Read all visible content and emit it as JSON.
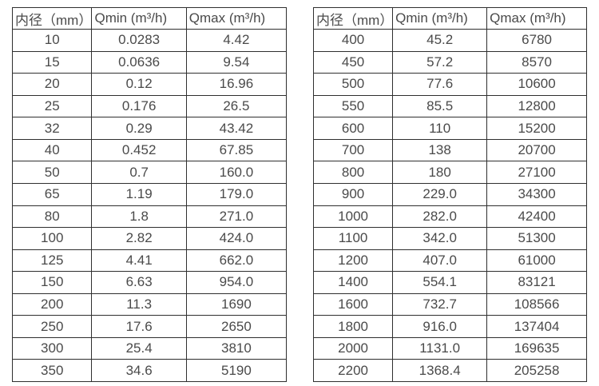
{
  "style": {
    "background": "#ffffff",
    "text_color": "#4a4a4a",
    "border_color": "#2f2f2f"
  },
  "chart_data": [
    {
      "type": "table",
      "columns": [
        "内径（mm）",
        "Qmin (m³/h)",
        "Qmax (m³/h)"
      ],
      "rows": [
        [
          "10",
          "0.0283",
          "4.42"
        ],
        [
          "15",
          "0.0636",
          "9.54"
        ],
        [
          "20",
          "0.12",
          "16.96"
        ],
        [
          "25",
          "0.176",
          "26.5"
        ],
        [
          "32",
          "0.29",
          "43.42"
        ],
        [
          "40",
          "0.452",
          "67.85"
        ],
        [
          "50",
          "0.7",
          "160.0"
        ],
        [
          "65",
          "1.19",
          "179.0"
        ],
        [
          "80",
          "1.8",
          "271.0"
        ],
        [
          "100",
          "2.82",
          "424.0"
        ],
        [
          "125",
          "4.41",
          "662.0"
        ],
        [
          "150",
          "6.63",
          "954.0"
        ],
        [
          "200",
          "11.3",
          "1690"
        ],
        [
          "250",
          "17.6",
          "2650"
        ],
        [
          "300",
          "25.4",
          "3810"
        ],
        [
          "350",
          "34.6",
          "5190"
        ]
      ]
    },
    {
      "type": "table",
      "columns": [
        "内径（mm）",
        "Qmin (m³/h)",
        "Qmax (m³/h)"
      ],
      "rows": [
        [
          "400",
          "45.2",
          "6780"
        ],
        [
          "450",
          "57.2",
          "8570"
        ],
        [
          "500",
          "77.6",
          "10600"
        ],
        [
          "550",
          "85.5",
          "12800"
        ],
        [
          "600",
          "110",
          "15200"
        ],
        [
          "700",
          "138",
          "20700"
        ],
        [
          "800",
          "180",
          "27100"
        ],
        [
          "900",
          "229.0",
          "34300"
        ],
        [
          "1000",
          "282.0",
          "42400"
        ],
        [
          "1100",
          "342.0",
          "51300"
        ],
        [
          "1200",
          "407.0",
          "61000"
        ],
        [
          "1400",
          "554.1",
          "83121"
        ],
        [
          "1600",
          "732.7",
          "108566"
        ],
        [
          "1800",
          "916.0",
          "137404"
        ],
        [
          "2000",
          "1131.0",
          "169635"
        ],
        [
          "2200",
          "1368.4",
          "205258"
        ]
      ]
    }
  ]
}
